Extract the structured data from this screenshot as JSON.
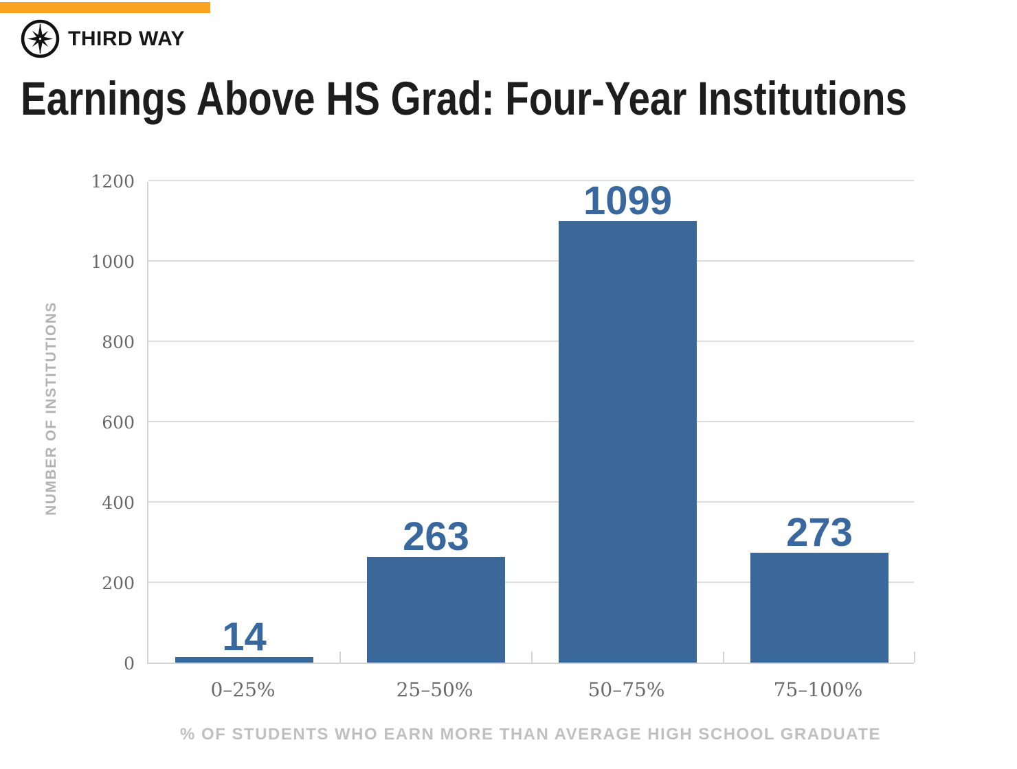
{
  "brand": {
    "logo_text": "THIRD WAY",
    "logo_icon": "compass-icon",
    "accent_color": "#FBA31F"
  },
  "title": "Earnings Above HS Grad: Four-Year Institutions",
  "chart_data": {
    "type": "bar",
    "title": "Earnings Above HS Grad: Four-Year Institutions",
    "categories": [
      "0–25%",
      "25–50%",
      "50–75%",
      "75–100%"
    ],
    "values": [
      14,
      263,
      1099,
      273
    ],
    "value_labels": [
      "14",
      "263",
      "1099",
      "273"
    ],
    "xlabel": "% OF STUDENTS WHO EARN MORE THAN AVERAGE HIGH SCHOOL GRADUATE",
    "ylabel": "NUMBER OF INSTITUTIONS",
    "ylim": [
      0,
      1200
    ],
    "yticks": [
      0,
      200,
      400,
      600,
      800,
      1000,
      1200
    ],
    "grid": true,
    "legend": "none",
    "bar_color": "#3B689A",
    "value_label_color": "#38689D",
    "gridline_color": "#dcdcdc"
  }
}
